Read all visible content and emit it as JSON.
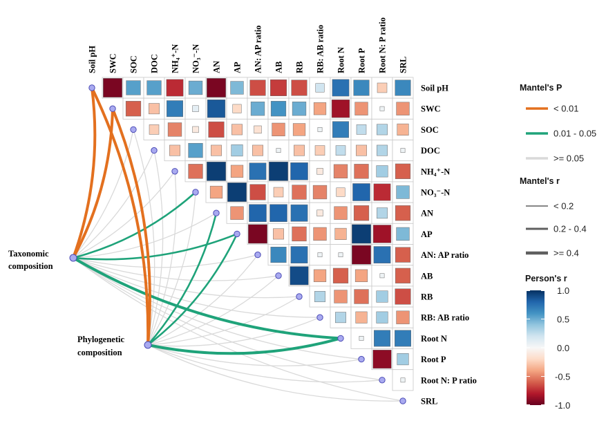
{
  "chart_data": {
    "type": "heatmap",
    "variables": [
      "Soil pH",
      "SWC",
      "SOC",
      "DOC",
      "NH₄⁺-N",
      "NO₃⁻-N",
      "AN",
      "AP",
      "AN: AP ratio",
      "AB",
      "RB",
      "RB: AB ratio",
      "Root N",
      "Root P",
      "Root N: P ratio",
      "SRL"
    ],
    "pearson_r_upper": [
      [
        -0.95,
        0.55,
        0.55,
        -0.75,
        0.5,
        -0.95,
        0.45,
        -0.65,
        -0.7,
        -0.65,
        0.2,
        0.75,
        0.65,
        -0.25,
        0.65
      ],
      [
        -0.6,
        -0.3,
        0.7,
        0.1,
        0.85,
        -0.2,
        0.5,
        0.6,
        0.5,
        -0.4,
        -0.85,
        -0.45,
        0.05,
        -0.45
      ],
      [
        -0.25,
        -0.5,
        -0.1,
        -0.65,
        -0.3,
        -0.15,
        -0.45,
        -0.4,
        0.05,
        0.7,
        0.25,
        0.3,
        -0.35
      ],
      [
        -0.3,
        0.55,
        -0.3,
        0.35,
        -0.3,
        0.05,
        -0.3,
        -0.25,
        0.25,
        -0.3,
        0.3,
        0.05
      ],
      [
        -0.55,
        0.95,
        -0.4,
        0.75,
        0.95,
        0.8,
        -0.1,
        -0.5,
        -0.55,
        0.35,
        -0.6
      ],
      [
        -0.4,
        0.95,
        -0.65,
        -0.25,
        -0.55,
        -0.5,
        -0.2,
        0.8,
        -0.75,
        0.45
      ],
      [
        -0.45,
        0.8,
        0.8,
        0.75,
        -0.1,
        -0.45,
        -0.6,
        0.3,
        -0.6
      ],
      [
        -0.95,
        -0.3,
        -0.55,
        -0.45,
        -0.35,
        0.95,
        -0.85,
        0.45
      ],
      [
        0.65,
        0.75,
        0.05,
        0.05,
        -0.95,
        0.75,
        -0.6
      ],
      [
        0.9,
        -0.4,
        -0.6,
        -0.4,
        0.05,
        -0.6
      ],
      [
        0.3,
        -0.45,
        -0.55,
        0.35,
        -0.65
      ],
      [
        0.3,
        -0.35,
        0.35,
        -0.45
      ],
      [
        0.05,
        0.7,
        0.7
      ],
      [
        -0.9,
        0.35
      ],
      [
        0.05
      ],
      []
    ],
    "mantel": [
      {
        "label_lines": [
          "Taxonomic",
          "composition"
        ],
        "links": [
          {
            "variable": "Soil pH",
            "p": "< 0.01",
            "r": ">= 0.4"
          },
          {
            "variable": "SWC",
            "p": "< 0.01",
            "r": ">= 0.4"
          },
          {
            "variable": "SOC",
            "p": ">= 0.05",
            "r": "< 0.2"
          },
          {
            "variable": "DOC",
            "p": ">= 0.05",
            "r": "< 0.2"
          },
          {
            "variable": "NH₄⁺-N",
            "p": ">= 0.05",
            "r": "< 0.2"
          },
          {
            "variable": "NO₃⁻-N",
            "p": "0.01 - 0.05",
            "r": "0.2 - 0.4"
          },
          {
            "variable": "AN",
            "p": ">= 0.05",
            "r": "< 0.2"
          },
          {
            "variable": "AP",
            "p": "0.01 - 0.05",
            "r": "0.2 - 0.4"
          },
          {
            "variable": "AN: AP ratio",
            "p": ">= 0.05",
            "r": "< 0.2"
          },
          {
            "variable": "AB",
            "p": ">= 0.05",
            "r": "< 0.2"
          },
          {
            "variable": "RB",
            "p": ">= 0.05",
            "r": "< 0.2"
          },
          {
            "variable": "RB: AB ratio",
            "p": ">= 0.05",
            "r": "< 0.2"
          },
          {
            "variable": "Root N",
            "p": "0.01 - 0.05",
            "r": ">= 0.4"
          },
          {
            "variable": "Root P",
            "p": ">= 0.05",
            "r": "< 0.2"
          },
          {
            "variable": "Root N: P ratio",
            "p": ">= 0.05",
            "r": "< 0.2"
          },
          {
            "variable": "SRL",
            "p": ">= 0.05",
            "r": "< 0.2"
          }
        ]
      },
      {
        "label_lines": [
          "Phylogenetic",
          "composition"
        ],
        "links": [
          {
            "variable": "Soil pH",
            "p": "< 0.01",
            "r": ">= 0.4"
          },
          {
            "variable": "SWC",
            "p": "< 0.01",
            "r": ">= 0.4"
          },
          {
            "variable": "SOC",
            "p": ">= 0.05",
            "r": "< 0.2"
          },
          {
            "variable": "DOC",
            "p": ">= 0.05",
            "r": "< 0.2"
          },
          {
            "variable": "NH₄⁺-N",
            "p": ">= 0.05",
            "r": "< 0.2"
          },
          {
            "variable": "NO₃⁻-N",
            "p": ">= 0.05",
            "r": "< 0.2"
          },
          {
            "variable": "AN",
            "p": "0.01 - 0.05",
            "r": "0.2 - 0.4"
          },
          {
            "variable": "AP",
            "p": "0.01 - 0.05",
            "r": "0.2 - 0.4"
          },
          {
            "variable": "AN: AP ratio",
            "p": ">= 0.05",
            "r": "< 0.2"
          },
          {
            "variable": "AB",
            "p": ">= 0.05",
            "r": "< 0.2"
          },
          {
            "variable": "RB",
            "p": ">= 0.05",
            "r": "< 0.2"
          },
          {
            "variable": "RB: AB ratio",
            "p": ">= 0.05",
            "r": "< 0.2"
          },
          {
            "variable": "Root N",
            "p": "0.01 - 0.05",
            "r": ">= 0.4"
          },
          {
            "variable": "Root P",
            "p": ">= 0.05",
            "r": "< 0.2"
          },
          {
            "variable": "Root N: P ratio",
            "p": ">= 0.05",
            "r": "< 0.2"
          },
          {
            "variable": "SRL",
            "p": ">= 0.05",
            "r": "< 0.2"
          }
        ]
      }
    ],
    "legend": {
      "mantel_p": {
        "title": "Mantel's P",
        "items": [
          {
            "label": "< 0.01",
            "color": "#E3701F"
          },
          {
            "label": "0.01 - 0.05",
            "color": "#1FA37A"
          },
          {
            "label": ">= 0.05",
            "color": "#D9D9D9"
          }
        ]
      },
      "mantel_r": {
        "title": "Mantel's r",
        "color": "#5F5F5F",
        "items": [
          {
            "label": "< 0.2"
          },
          {
            "label": "0.2 - 0.4"
          },
          {
            "label": ">= 0.4"
          }
        ]
      },
      "pearson_r": {
        "title": "Person's r",
        "range": [
          -1,
          1
        ],
        "ticks": [
          "1.0",
          "0.5",
          "0.0",
          "-0.5",
          "-1.0"
        ],
        "colors": [
          "#67001F",
          "#B2182B",
          "#D6604D",
          "#F4A582",
          "#FDDBC7",
          "#F7F7F7",
          "#D1E5F0",
          "#92C5DE",
          "#4393C3",
          "#2166AC",
          "#053061"
        ]
      }
    }
  }
}
